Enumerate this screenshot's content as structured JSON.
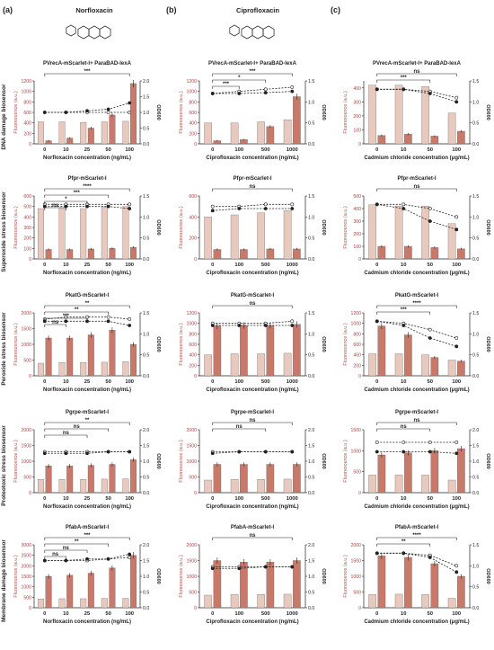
{
  "panel_letters": [
    "(a)",
    "(b)",
    "(c)"
  ],
  "columns": [
    {
      "compound": "Norfloxacin",
      "xlabel": "Norfloxacin concentration (ng/mL)"
    },
    {
      "compound": "Ciprofloxacin",
      "xlabel": "Ciprofloxacin concentration (ng/mL)"
    },
    {
      "compound": "",
      "xlabel": "Cadmium chloride concentration (μg/mL)"
    }
  ],
  "row_labels": [
    "DNA damage biosensor",
    "Superoxide stress biosensor",
    "Peroxide stress biosensor",
    "Proteotoxic stress biosensor",
    "Membrane damage biosensor"
  ],
  "ylabel_left": "Fluorescence (a.u.)",
  "ylabel_right": "OD600",
  "colors": {
    "light_bar": "#e9c9bd",
    "dark_bar": "#c8796a",
    "line": "#222222",
    "axis_left": "#b3504a"
  },
  "chart_data": [
    {
      "type": "bar",
      "row": 0,
      "col": 0,
      "title": "PVrecA-mScarlet-I+ ParaBAD-lexA",
      "categories": [
        "0",
        "10",
        "25",
        "50",
        "100"
      ],
      "ylim": [
        0,
        1200
      ],
      "yticks": [
        0,
        200,
        400,
        600,
        800,
        1000,
        1200
      ],
      "y2lim": [
        0,
        2.0
      ],
      "y2ticks": [
        0,
        0.5,
        1.0,
        1.5,
        2.0
      ],
      "series": [
        {
          "values": [
            420,
            420,
            410,
            420,
            430
          ]
        },
        {
          "values": [
            60,
            110,
            300,
            550,
            1150
          ]
        }
      ],
      "od": [
        [
          1.0,
          1.0,
          1.0,
          1.0,
          1.0
        ],
        [
          1.0,
          1.0,
          1.05,
          1.1,
          1.3
        ]
      ],
      "sig": [
        "***"
      ]
    },
    {
      "type": "bar",
      "row": 0,
      "col": 1,
      "title": "PVrecA-mScarlet-I+ ParaBAD-lexA",
      "categories": [
        "0",
        "100",
        "500",
        "1000"
      ],
      "ylim": [
        0,
        1200
      ],
      "yticks": [
        0,
        200,
        400,
        600,
        800,
        1000,
        1200
      ],
      "y2lim": [
        0,
        1.5
      ],
      "y2ticks": [
        0,
        0.5,
        1.0,
        1.5
      ],
      "series": [
        {
          "values": [
            400,
            400,
            420,
            460
          ]
        },
        {
          "values": [
            60,
            80,
            330,
            900
          ]
        }
      ],
      "od": [
        [
          1.2,
          1.25,
          1.3,
          1.35
        ],
        [
          1.2,
          1.2,
          1.22,
          1.25
        ]
      ],
      "sig": [
        "***",
        "*",
        "***"
      ]
    },
    {
      "type": "bar",
      "row": 0,
      "col": 2,
      "title": "PVrecA-mScarlet-I+ ParaBAD-lexA",
      "categories": [
        "0",
        "10",
        "50",
        "100"
      ],
      "ylim": [
        0,
        450
      ],
      "yticks": [
        0,
        100,
        200,
        300,
        400
      ],
      "y2lim": [
        0,
        1.5
      ],
      "y2ticks": [
        0,
        0.5,
        1.0,
        1.5
      ],
      "series": [
        {
          "values": [
            420,
            420,
            410,
            220
          ]
        },
        {
          "values": [
            60,
            70,
            55,
            90
          ]
        }
      ],
      "od": [
        [
          1.3,
          1.3,
          1.25,
          1.1
        ],
        [
          1.3,
          1.3,
          1.2,
          1.0
        ]
      ],
      "sig": [
        "ns",
        "***"
      ]
    },
    {
      "type": "bar",
      "row": 1,
      "col": 0,
      "title": "Pfpr-mScarlet-I",
      "categories": [
        "0",
        "10",
        "25",
        "50",
        "100"
      ],
      "ylim": [
        0,
        600
      ],
      "yticks": [
        0,
        100,
        200,
        300,
        400,
        500,
        600
      ],
      "y2lim": [
        0,
        1.5
      ],
      "y2ticks": [
        0,
        0.5,
        1.0,
        1.5
      ],
      "series": [
        {
          "values": [
            480,
            480,
            480,
            490,
            500
          ]
        },
        {
          "values": [
            90,
            90,
            95,
            100,
            110
          ]
        }
      ],
      "od": [
        [
          1.3,
          1.3,
          1.3,
          1.3,
          1.3
        ],
        [
          1.25,
          1.25,
          1.25,
          1.25,
          1.2
        ]
      ],
      "sig": [
        "****",
        "***",
        "*",
        "ns"
      ]
    },
    {
      "type": "bar",
      "row": 1,
      "col": 1,
      "title": "Pfpr-mScarlet-I",
      "categories": [
        "0",
        "100",
        "500",
        "1000"
      ],
      "ylim": [
        0,
        600
      ],
      "yticks": [
        0,
        200,
        400,
        600
      ],
      "y2lim": [
        0,
        1.5
      ],
      "y2ticks": [
        0,
        0.5,
        1.0,
        1.5
      ],
      "series": [
        {
          "values": [
            400,
            420,
            440,
            460
          ]
        },
        {
          "values": [
            90,
            90,
            95,
            95
          ]
        }
      ],
      "od": [
        [
          1.25,
          1.25,
          1.3,
          1.3
        ],
        [
          1.15,
          1.2,
          1.2,
          1.2
        ]
      ],
      "sig": [
        "ns"
      ]
    },
    {
      "type": "bar",
      "row": 1,
      "col": 2,
      "title": "Pfpr-mScarlet-I",
      "categories": [
        "0",
        "10",
        "50",
        "100"
      ],
      "ylim": [
        0,
        500
      ],
      "yticks": [
        0,
        100,
        200,
        300,
        400,
        500
      ],
      "y2lim": [
        0,
        1.5
      ],
      "y2ticks": [
        0,
        0.5,
        1.0,
        1.5
      ],
      "series": [
        {
          "values": [
            430,
            420,
            420,
            280
          ]
        },
        {
          "values": [
            100,
            100,
            90,
            80
          ]
        }
      ],
      "od": [
        [
          1.3,
          1.3,
          1.2,
          1.0
        ],
        [
          1.3,
          1.2,
          0.9,
          0.7
        ]
      ],
      "sig": [
        "ns"
      ]
    },
    {
      "type": "bar",
      "row": 2,
      "col": 0,
      "title": "PkatG-mScarlet-I",
      "categories": [
        "0",
        "10",
        "25",
        "50",
        "100"
      ],
      "ylim": [
        0,
        2000
      ],
      "yticks": [
        0,
        500,
        1000,
        1500,
        2000
      ],
      "y2lim": [
        0,
        1.5
      ],
      "y2ticks": [
        0,
        0.5,
        1.0,
        1.5
      ],
      "series": [
        {
          "values": [
            400,
            420,
            420,
            430,
            450
          ]
        },
        {
          "values": [
            1200,
            1200,
            1300,
            1450,
            1000
          ]
        }
      ],
      "od": [
        [
          1.35,
          1.4,
          1.4,
          1.4,
          1.35
        ],
        [
          1.3,
          1.3,
          1.3,
          1.3,
          1.2
        ]
      ],
      "sig": [
        "**",
        "**",
        "***",
        "ns"
      ]
    },
    {
      "type": "bar",
      "row": 2,
      "col": 1,
      "title": "PkatG-mScarlet-I",
      "categories": [
        "0",
        "100",
        "500",
        "1000"
      ],
      "ylim": [
        0,
        1200
      ],
      "yticks": [
        0,
        200,
        400,
        600,
        800,
        1000,
        1200
      ],
      "y2lim": [
        0,
        1.5
      ],
      "y2ticks": [
        0,
        0.5,
        1.0,
        1.5
      ],
      "series": [
        {
          "values": [
            400,
            420,
            420,
            430
          ]
        },
        {
          "values": [
            950,
            960,
            960,
            980
          ]
        }
      ],
      "od": [
        [
          1.25,
          1.25,
          1.25,
          1.3
        ],
        [
          1.2,
          1.2,
          1.2,
          1.2
        ]
      ],
      "sig": [
        "ns"
      ]
    },
    {
      "type": "bar",
      "row": 2,
      "col": 2,
      "title": "PkatG-mScarlet-I",
      "categories": [
        "0",
        "10",
        "50",
        "100"
      ],
      "ylim": [
        0,
        1200
      ],
      "yticks": [
        0,
        200,
        400,
        600,
        800,
        1000,
        1200
      ],
      "y2lim": [
        0,
        1.5
      ],
      "y2ticks": [
        0,
        0.5,
        1.0,
        1.5
      ],
      "series": [
        {
          "values": [
            420,
            420,
            400,
            300
          ]
        },
        {
          "values": [
            950,
            780,
            350,
            280
          ]
        }
      ],
      "od": [
        [
          1.3,
          1.25,
          1.1,
          0.9
        ],
        [
          1.3,
          1.2,
          0.9,
          0.7
        ]
      ],
      "sig": [
        "****",
        "***"
      ]
    },
    {
      "type": "bar",
      "row": 3,
      "col": 0,
      "title": "Pgrpe-mScarlet-I",
      "categories": [
        "0",
        "10",
        "25",
        "50",
        "100"
      ],
      "ylim": [
        0,
        2000
      ],
      "yticks": [
        0,
        500,
        1000,
        1500,
        2000
      ],
      "y2lim": [
        0,
        2.0
      ],
      "y2ticks": [
        0,
        0.5,
        1.0,
        1.5,
        2.0
      ],
      "series": [
        {
          "values": [
            420,
            420,
            420,
            430,
            440
          ]
        },
        {
          "values": [
            850,
            850,
            870,
            900,
            1050
          ]
        }
      ],
      "od": [
        [
          1.3,
          1.3,
          1.3,
          1.3,
          1.3
        ],
        [
          1.25,
          1.25,
          1.25,
          1.3,
          1.3
        ]
      ],
      "sig": [
        "**",
        "ns",
        "ns"
      ]
    },
    {
      "type": "bar",
      "row": 3,
      "col": 1,
      "title": "Pgrpe-mScarlet-I",
      "categories": [
        "0",
        "100",
        "500",
        "1000"
      ],
      "ylim": [
        0,
        2000
      ],
      "yticks": [
        0,
        500,
        1000,
        1500,
        2000
      ],
      "y2lim": [
        0,
        2.0
      ],
      "y2ticks": [
        0,
        0.5,
        1.0,
        1.5,
        2.0
      ],
      "series": [
        {
          "values": [
            400,
            420,
            420,
            430
          ]
        },
        {
          "values": [
            900,
            900,
            900,
            900
          ]
        }
      ],
      "od": [
        [
          1.3,
          1.3,
          1.3,
          1.3
        ],
        [
          1.25,
          1.3,
          1.3,
          1.3
        ]
      ],
      "sig": [
        "ns",
        "ns"
      ]
    },
    {
      "type": "bar",
      "row": 3,
      "col": 2,
      "title": "Pgrpe-mScarlet-I",
      "categories": [
        "0",
        "10",
        "50",
        "100"
      ],
      "ylim": [
        0,
        1500
      ],
      "yticks": [
        0,
        500,
        1000,
        1500
      ],
      "y2lim": [
        0,
        2.0
      ],
      "y2ticks": [
        0,
        0.5,
        1.0,
        1.5,
        2.0
      ],
      "series": [
        {
          "values": [
            420,
            420,
            420,
            300
          ]
        },
        {
          "values": [
            900,
            950,
            1000,
            1050
          ]
        }
      ],
      "od": [
        [
          1.6,
          1.6,
          1.6,
          1.6
        ],
        [
          1.3,
          1.3,
          1.3,
          1.25
        ]
      ],
      "sig": [
        "ns",
        "ns"
      ]
    },
    {
      "type": "bar",
      "row": 4,
      "col": 0,
      "title": "PfabA-mScarlet-I",
      "categories": [
        "0",
        "10",
        "25",
        "50",
        "100"
      ],
      "ylim": [
        0,
        3000
      ],
      "yticks": [
        0,
        500,
        1000,
        1500,
        2000,
        2500,
        3000
      ],
      "y2lim": [
        0,
        2.0
      ],
      "y2ticks": [
        0,
        0.5,
        1.0,
        1.5,
        2.0
      ],
      "series": [
        {
          "values": [
            420,
            430,
            430,
            440,
            450
          ]
        },
        {
          "values": [
            1500,
            1550,
            1650,
            1900,
            2500
          ]
        }
      ],
      "od": [
        [
          1.5,
          1.5,
          1.5,
          1.55,
          1.6
        ],
        [
          1.5,
          1.5,
          1.55,
          1.55,
          1.7
        ]
      ],
      "sig": [
        "***",
        "**",
        "ns",
        "ns"
      ]
    },
    {
      "type": "bar",
      "row": 4,
      "col": 1,
      "title": "PfabA-mScarlet-I",
      "categories": [
        "0",
        "100",
        "500",
        "1000"
      ],
      "ylim": [
        0,
        2000
      ],
      "yticks": [
        0,
        500,
        1000,
        1500,
        2000
      ],
      "y2lim": [
        0,
        2.0
      ],
      "y2ticks": [
        0,
        0.5,
        1.0,
        1.5,
        2.0
      ],
      "series": [
        {
          "values": [
            400,
            420,
            420,
            430
          ]
        },
        {
          "values": [
            1500,
            1450,
            1450,
            1500
          ]
        }
      ],
      "od": [
        [
          1.3,
          1.3,
          1.3,
          1.3
        ],
        [
          1.25,
          1.25,
          1.3,
          1.3
        ]
      ],
      "sig": [
        "ns"
      ]
    },
    {
      "type": "bar",
      "row": 4,
      "col": 2,
      "title": "PfabA-mScarlet-I",
      "categories": [
        "0",
        "10",
        "50",
        "100"
      ],
      "ylim": [
        0,
        2000
      ],
      "yticks": [
        0,
        500,
        1000,
        1500,
        2000
      ],
      "y2lim": [
        0,
        1.5
      ],
      "y2ticks": [
        0,
        0.5,
        1.0,
        1.5
      ],
      "series": [
        {
          "values": [
            420,
            430,
            420,
            300
          ]
        },
        {
          "values": [
            1650,
            1600,
            1400,
            1000
          ]
        }
      ],
      "od": [
        [
          1.3,
          1.3,
          1.25,
          1.0
        ],
        [
          1.3,
          1.3,
          1.2,
          0.85
        ]
      ],
      "sig": [
        "****",
        "**"
      ]
    }
  ]
}
